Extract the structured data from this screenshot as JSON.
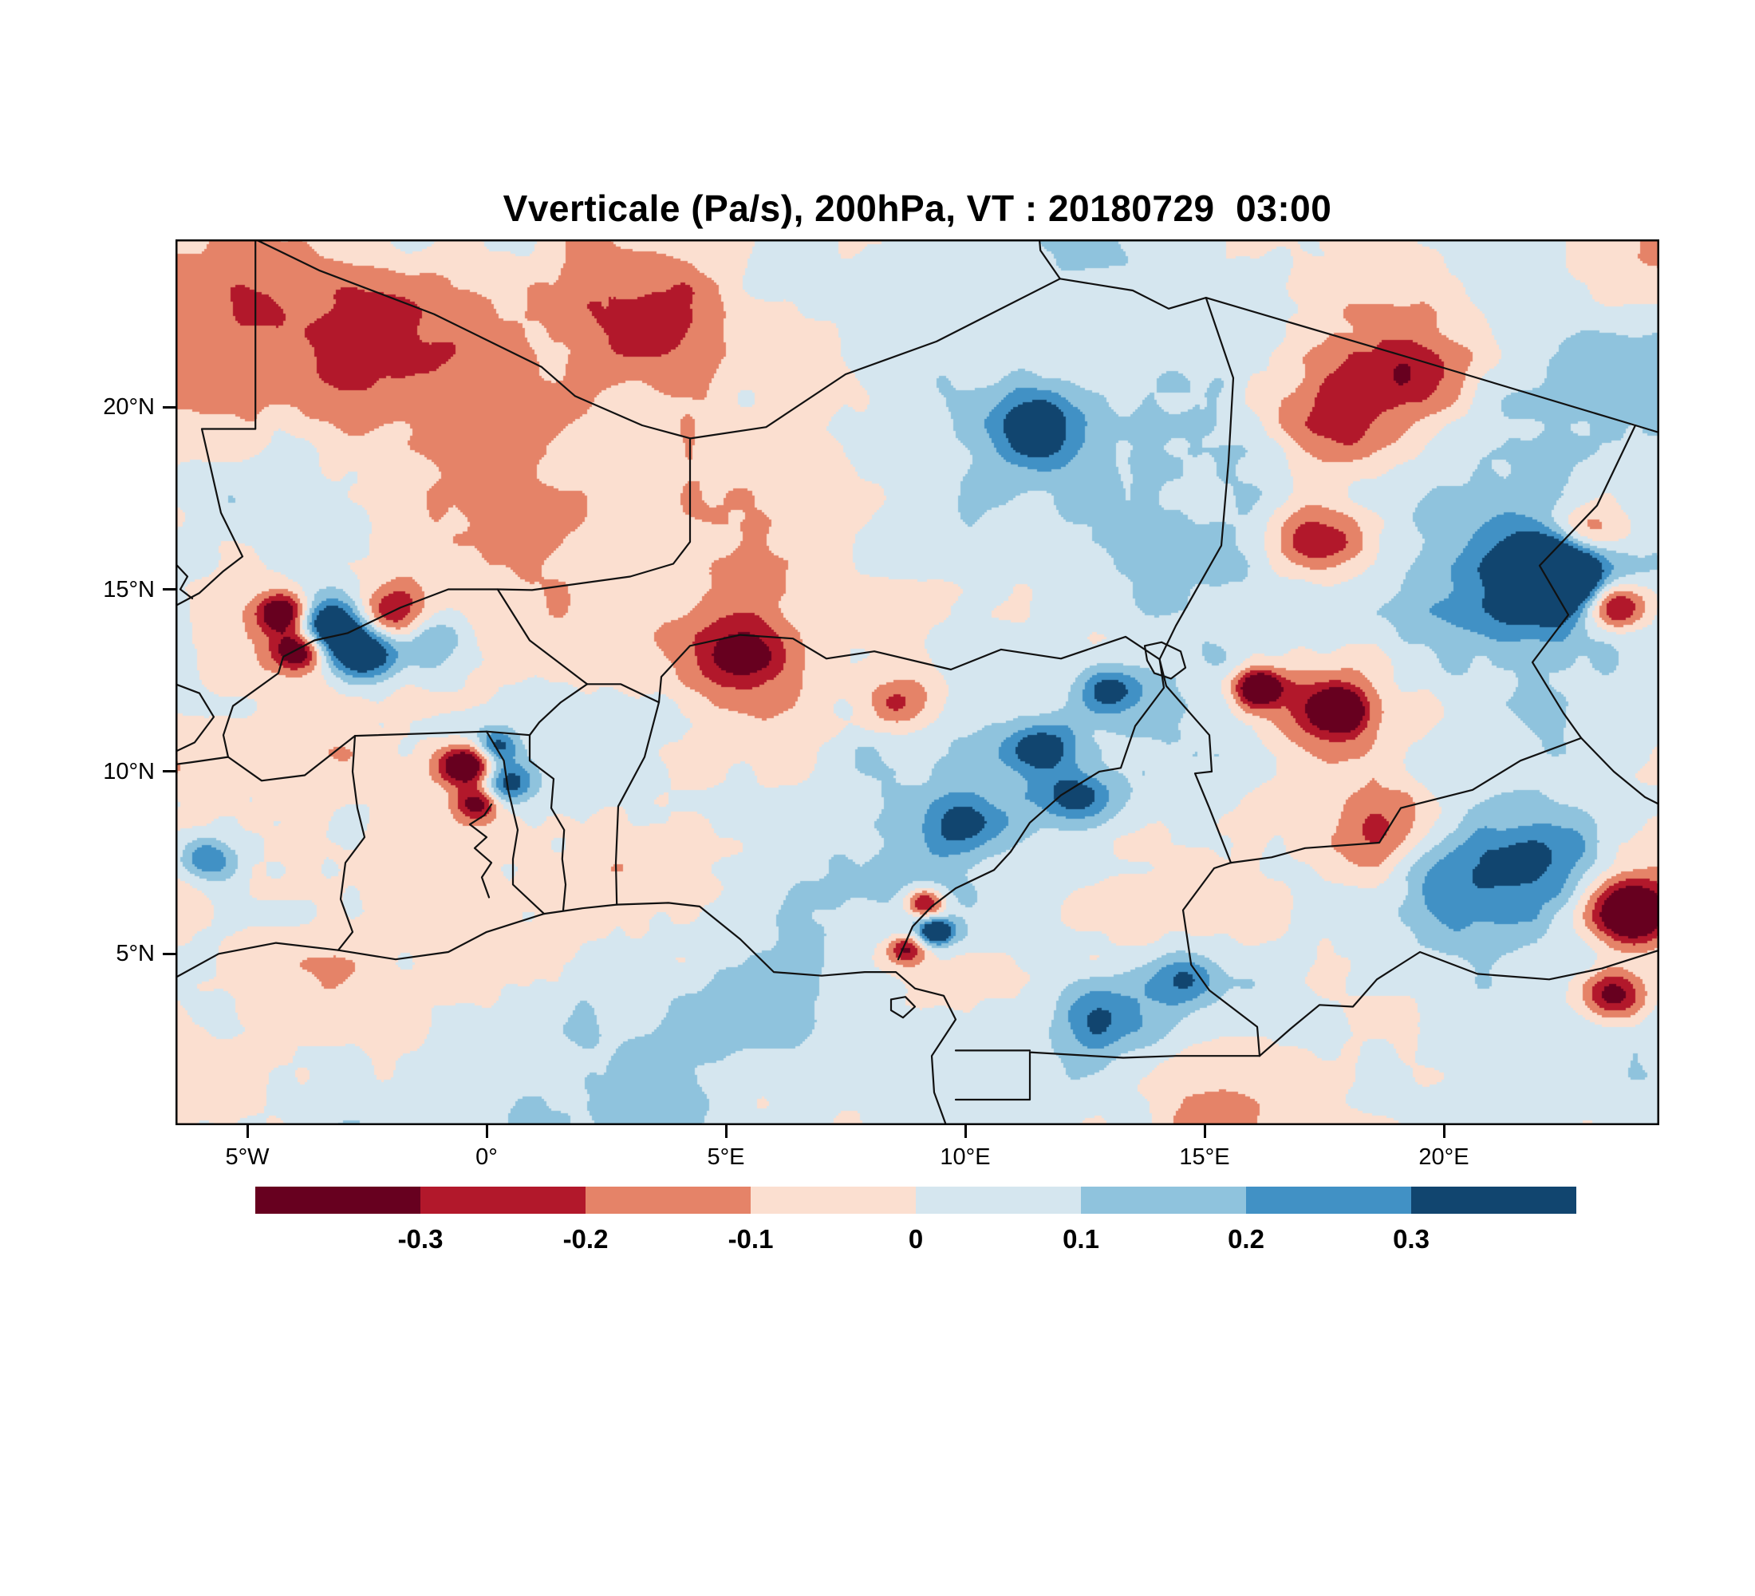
{
  "title": "Vverticale (Pa/s), 200hPa, VT : 20180729  03:00",
  "axes": {
    "lat_ticks": [
      {
        "label": "20°N",
        "value": 20
      },
      {
        "label": "15°N",
        "value": 15
      },
      {
        "label": "10°N",
        "value": 10
      },
      {
        "label": "5°N",
        "value": 5
      }
    ],
    "lon_ticks": [
      {
        "label": "5°W",
        "value": -5
      },
      {
        "label": "0°",
        "value": 0
      },
      {
        "label": "5°E",
        "value": 5
      },
      {
        "label": "10°E",
        "value": 10
      },
      {
        "label": "15°E",
        "value": 15
      },
      {
        "label": "20°E",
        "value": 20
      }
    ]
  },
  "colorbar": {
    "tick_labels": [
      "-0.3",
      "-0.2",
      "-0.1",
      "0",
      "0.1",
      "0.2",
      "0.3"
    ]
  },
  "chart_data": {
    "type": "heatmap",
    "title": "Vverticale (Pa/s), 200hPa, VT : 20180729  03:00",
    "variable": "Vverticale",
    "units": "Pa/s",
    "pressure_level": "200hPa",
    "valid_time": "20180729 03:00",
    "projection": "lat-lon, West/Central Africa with country borders",
    "lon_range": [
      -6.5,
      24.5
    ],
    "lat_range": [
      0.3,
      24.6
    ],
    "x_tick_labels": [
      "5°W",
      "0°",
      "5°E",
      "10°E",
      "15°E",
      "20°E"
    ],
    "y_tick_labels": [
      "5°N",
      "10°N",
      "15°N",
      "20°N"
    ],
    "contour_levels": [
      -0.3,
      -0.2,
      -0.1,
      0,
      0.1,
      0.2,
      0.3
    ],
    "palette": [
      "#67001f",
      "#b2182b",
      "#e58368",
      "#fbdfd0",
      "#d5e6ef",
      "#8fc3dd",
      "#4191c5",
      "#11456f"
    ],
    "legend_position": "horizontal colorbar below map",
    "grid": false,
    "field_summary": "Mottled field of weak vertical-velocity anomalies mostly within ±0.1 Pa/s (pale pink / pale blue), with localized strong negative cells (dark red, < -0.3) over Ghana, the Mali/Burkina area and the far east (~24E, 4-6N), and strong positive cells (dark blue, > +0.3) over Mali/Burkina (~3W, 14N) and Sudan/Chad border (~22E, 15N).",
    "anomaly_centers": [
      [
        -3.3,
        14.0,
        0.55,
        0.55
      ],
      [
        -4.25,
        14.35,
        0.4,
        -0.5
      ],
      [
        -2.55,
        13.2,
        0.5,
        0.45
      ],
      [
        -3.9,
        13.35,
        0.38,
        -0.45
      ],
      [
        -2.0,
        14.3,
        0.5,
        -0.3
      ],
      [
        -1.2,
        13.6,
        0.6,
        0.25
      ],
      [
        -0.45,
        10.15,
        0.42,
        -0.62
      ],
      [
        -0.2,
        9.1,
        0.32,
        -0.35
      ],
      [
        0.45,
        9.7,
        0.4,
        0.35
      ],
      [
        0.2,
        10.7,
        0.3,
        0.3
      ],
      [
        22.35,
        15.4,
        0.75,
        0.65
      ],
      [
        21.8,
        15.0,
        1.5,
        0.2
      ],
      [
        23.6,
        14.55,
        0.5,
        -0.5
      ],
      [
        23.0,
        16.5,
        0.55,
        -0.35
      ],
      [
        23.9,
        6.1,
        0.65,
        -0.6
      ],
      [
        23.55,
        3.9,
        0.5,
        -0.45
      ],
      [
        20.8,
        6.9,
        1.3,
        0.3
      ],
      [
        22.4,
        7.7,
        0.8,
        0.25
      ],
      [
        17.6,
        11.7,
        1.1,
        -0.28
      ],
      [
        17.8,
        11.7,
        0.35,
        -0.45
      ],
      [
        12.35,
        9.3,
        0.55,
        0.35
      ],
      [
        11.6,
        10.7,
        0.5,
        0.3
      ],
      [
        13.05,
        12.25,
        0.45,
        0.3
      ],
      [
        10.0,
        8.6,
        0.6,
        0.3
      ],
      [
        16.15,
        12.3,
        0.35,
        -0.5
      ],
      [
        8.6,
        11.9,
        0.6,
        -0.25
      ],
      [
        5.35,
        13.2,
        0.75,
        -0.3
      ],
      [
        11.55,
        19.6,
        0.8,
        0.35
      ],
      [
        17.3,
        16.3,
        0.7,
        -0.3
      ],
      [
        19.4,
        21.2,
        1.0,
        -0.25
      ],
      [
        17.6,
        19.8,
        0.9,
        -0.22
      ],
      [
        9.15,
        6.4,
        0.3,
        -0.45
      ],
      [
        9.4,
        5.6,
        0.25,
        0.5
      ],
      [
        8.75,
        5.15,
        0.28,
        -0.35
      ],
      [
        12.9,
        3.2,
        0.8,
        0.25
      ],
      [
        14.6,
        4.3,
        0.5,
        0.3
      ],
      [
        -5.85,
        7.6,
        0.4,
        0.3
      ],
      [
        3.3,
        22.4,
        1.1,
        -0.22
      ],
      [
        -4.5,
        23.0,
        1.5,
        -0.12
      ],
      [
        -1.6,
        21.6,
        1.4,
        -0.16
      ],
      [
        18.6,
        8.3,
        0.9,
        -0.28
      ],
      [
        12.0,
        17.5,
        3.2,
        0.1
      ],
      [
        20.5,
        12.3,
        2.6,
        0.1
      ],
      [
        2.0,
        16.2,
        2.8,
        -0.08
      ],
      [
        -2.0,
        19.3,
        2.6,
        -0.07
      ],
      [
        -4.0,
        17.5,
        2.0,
        0.08
      ],
      [
        9.0,
        8.3,
        2.4,
        0.08
      ],
      [
        -2.5,
        3.0,
        2.6,
        -0.08
      ],
      [
        5.0,
        2.2,
        2.5,
        0.08
      ],
      [
        23.0,
        20.0,
        2.0,
        0.08
      ],
      [
        -2.0,
        0.8,
        1.8,
        0.12
      ],
      [
        3.0,
        1.0,
        2.0,
        0.1
      ]
    ]
  }
}
